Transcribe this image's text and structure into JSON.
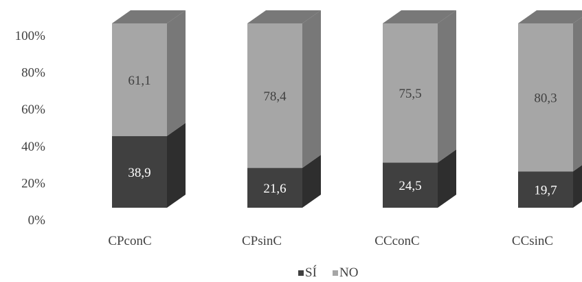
{
  "chart_data": {
    "type": "bar",
    "stacked": true,
    "three_d": true,
    "percent_stacked": true,
    "categories": [
      "CPconC",
      "CPsinC",
      "CCconC",
      "CCsinC"
    ],
    "series": [
      {
        "name": "SÍ",
        "values": [
          38.9,
          21.6,
          24.5,
          19.7
        ],
        "color": "#404040"
      },
      {
        "name": "NO",
        "values": [
          61.1,
          78.4,
          75.5,
          80.3
        ],
        "color": "#a6a6a6"
      }
    ],
    "data_labels": {
      "SÍ": [
        "38,9",
        "21,6",
        "24,5",
        "19,7"
      ],
      "NO": [
        "61,1",
        "78,4",
        "75,5",
        "80,3"
      ]
    },
    "y_ticks": [
      "0%",
      "20%",
      "40%",
      "60%",
      "80%",
      "100%"
    ],
    "ylim": [
      0,
      100
    ],
    "grid": false,
    "legend_position": "bottom",
    "label_color": "#ffffff",
    "text_color": "#404040"
  }
}
